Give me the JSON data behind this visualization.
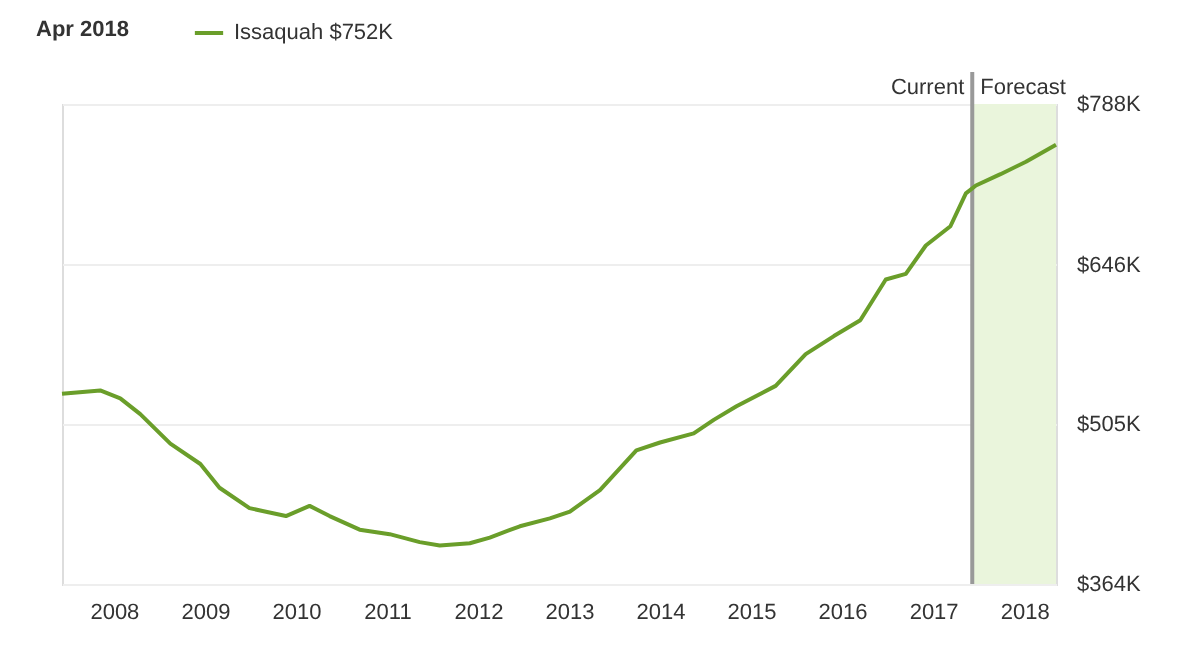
{
  "chart_data": {
    "type": "line",
    "title": "Apr 2018",
    "x": [
      2007.43,
      2007.85,
      2008.07,
      2008.29,
      2008.62,
      2008.95,
      2009.16,
      2009.49,
      2009.89,
      2010.15,
      2010.37,
      2010.7,
      2011.03,
      2011.36,
      2011.58,
      2011.91,
      2012.13,
      2012.46,
      2012.79,
      2013.01,
      2013.34,
      2013.74,
      2014.0,
      2014.37,
      2014.59,
      2014.84,
      2015.27,
      2015.6,
      2015.91,
      2016.2,
      2016.48,
      2016.7,
      2016.92,
      2017.19,
      2017.36,
      2017.47,
      2017.74,
      2018.02,
      2018.35
    ],
    "series": [
      {
        "name": "Issaquah $752K",
        "color": "#6a9e2a",
        "values": [
          532,
          535,
          528,
          514,
          488,
          470,
          449,
          431,
          424,
          433,
          424,
          412,
          408,
          401,
          398,
          400,
          405,
          415,
          422,
          428,
          447,
          482,
          489,
          497,
          509,
          521,
          539,
          567,
          583,
          597,
          633,
          638,
          663,
          680,
          709,
          716,
          726,
          737,
          752
        ]
      }
    ],
    "xlim": [
      2007.43,
      2018.35
    ],
    "xticks": [
      2008,
      2009,
      2010,
      2011,
      2012,
      2013,
      2014,
      2015,
      2016,
      2017,
      2018
    ],
    "ylim": [
      364,
      788
    ],
    "yticks": [
      {
        "value": 364,
        "label": "$364K"
      },
      {
        "value": 505,
        "label": "$505K"
      },
      {
        "value": 646,
        "label": "$646K"
      },
      {
        "value": 788,
        "label": "$788K"
      }
    ],
    "grid": "y",
    "legend": "top left",
    "marker": "none",
    "line_style": "solid",
    "ref_lines": [
      {
        "axis": "x",
        "value": 2017.43,
        "label": "Current",
        "color": "#999999"
      }
    ],
    "bands": [
      {
        "axis": "x",
        "from": 2017.43,
        "to": 2018.35,
        "label": "Forecast",
        "color": "#eaf5dc"
      }
    ]
  }
}
